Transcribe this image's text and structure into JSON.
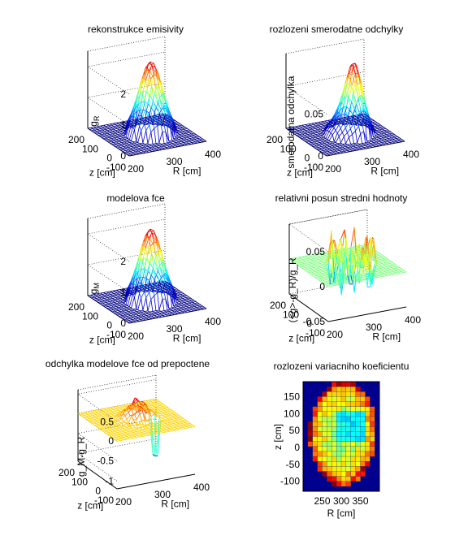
{
  "figure": {
    "background": "#ffffff",
    "colormap": "jet",
    "colormap_stops": [
      "#00008f",
      "#0000ff",
      "#00ffff",
      "#ffff00",
      "#ff0000",
      "#800000"
    ]
  },
  "chart_data": [
    {
      "id": "panel-1",
      "type": "surface",
      "title": "rekonstrukce emisivity",
      "xlabel": "z [cm]",
      "ylabel": "R [cm]",
      "zlabel": "g_R",
      "zlabel_main": "g",
      "zlabel_sub": "R",
      "x_ticks": [
        "200",
        "100",
        "0",
        "-100"
      ],
      "y_ticks": [
        "200",
        "300",
        "400"
      ],
      "z_ticks": [
        "0",
        "1",
        "2"
      ],
      "zlim": [
        0,
        2.5
      ],
      "grid": true
    },
    {
      "id": "panel-2",
      "type": "surface",
      "title": "rozlozeni smerodatne odchylky",
      "xlabel": "z [cm]",
      "ylabel": "R [cm]",
      "zlabel": "smerodatna odchylka",
      "x_ticks": [
        "200",
        "100",
        "0",
        "-100"
      ],
      "y_ticks": [
        "200",
        "300",
        "400"
      ],
      "z_ticks": [
        "0",
        "0.05"
      ],
      "zlim": [
        0,
        0.09
      ],
      "grid": true
    },
    {
      "id": "panel-3",
      "type": "surface",
      "title": "modelova fce",
      "xlabel": "z [cm]",
      "ylabel": "R [cm]",
      "zlabel": "g_M",
      "zlabel_main": "g",
      "zlabel_sub": "M",
      "x_ticks": [
        "200",
        "100",
        "0",
        "-100"
      ],
      "y_ticks": [
        "200",
        "300",
        "400"
      ],
      "z_ticks": [
        "0",
        "1",
        "2"
      ],
      "zlim": [
        0,
        2.5
      ],
      "grid": true
    },
    {
      "id": "panel-4",
      "type": "surface",
      "title": "relativni posun stredni hodnoty",
      "xlabel": "z [cm]",
      "ylabel": "R [cm]",
      "zlabel": "(<g>-g_R)/g_R",
      "x_ticks": [
        "200",
        "100",
        "0",
        "-100"
      ],
      "y_ticks": [
        "200",
        "300",
        "400"
      ],
      "z_ticks": [
        "-0.05",
        "0",
        "0.05"
      ],
      "zlim": [
        -0.05,
        0.05
      ],
      "grid": true
    },
    {
      "id": "panel-5",
      "type": "surface",
      "title": "odchylka modelove fce od prepoctene",
      "xlabel": "z [cm]",
      "ylabel": "R [cm]",
      "zlabel": "g_M-g_R",
      "x_ticks": [
        "200",
        "100",
        "0",
        "-100"
      ],
      "y_ticks": [
        "200",
        "300",
        "400"
      ],
      "z_ticks": [
        "-1",
        "-0.5",
        "0",
        "0.5"
      ],
      "zlim": [
        -1.2,
        0.6
      ],
      "grid": true
    },
    {
      "id": "panel-6",
      "type": "heatmap",
      "title": "rozlozeni variacniho koeficientu",
      "xlabel": "R [cm]",
      "ylabel": "z [cm]",
      "x_ticks": [
        "250",
        "300",
        "350"
      ],
      "y_ticks": [
        "150",
        "100",
        "50",
        "0",
        "-50",
        "-100"
      ],
      "xlim": [
        200,
        400
      ],
      "ylim": [
        -130,
        195
      ],
      "grid": false
    }
  ]
}
